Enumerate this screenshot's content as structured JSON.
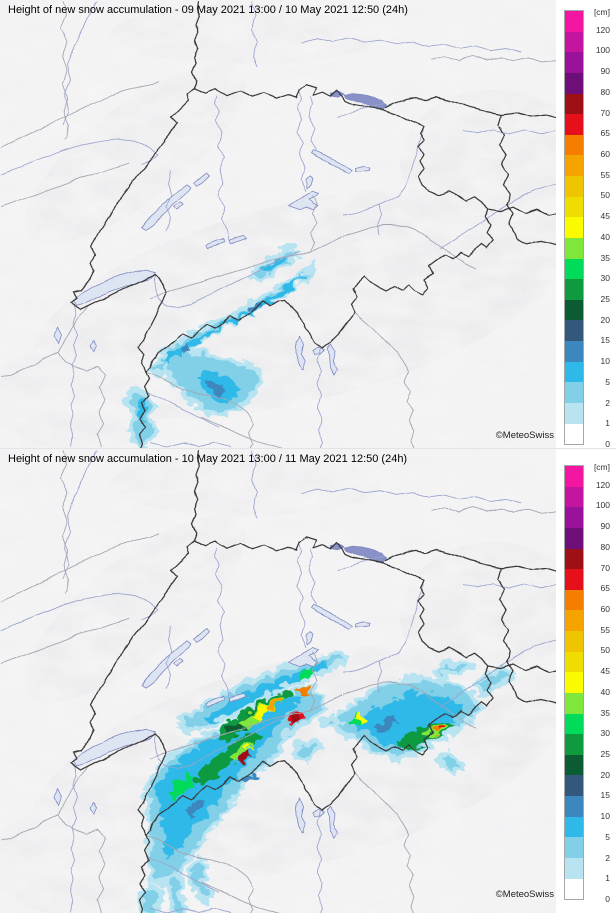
{
  "panels": [
    {
      "title": "Height of new snow accumulation - 09 May 2021 13:00 / 10 May 2021 12:50 (24h)",
      "attribution": "©MeteoSwiss"
    },
    {
      "title": "Height of new snow accumulation - 10 May 2021 13:00 / 11 May 2021 12:50 (24h)",
      "attribution": "©MeteoSwiss"
    }
  ],
  "legend": {
    "unit_label": "[cm]",
    "entries": [
      {
        "value": "120",
        "color": "#F316A0"
      },
      {
        "value": "100",
        "color": "#C414A0"
      },
      {
        "value": "90",
        "color": "#9A129A"
      },
      {
        "value": "80",
        "color": "#6E0E78"
      },
      {
        "value": "70",
        "color": "#9E1015"
      },
      {
        "value": "65",
        "color": "#E6101A"
      },
      {
        "value": "60",
        "color": "#F57E00"
      },
      {
        "value": "55",
        "color": "#F5A300"
      },
      {
        "value": "50",
        "color": "#EFC400"
      },
      {
        "value": "45",
        "color": "#EFDC00"
      },
      {
        "value": "40",
        "color": "#FBFB00"
      },
      {
        "value": "35",
        "color": "#7FE63C"
      },
      {
        "value": "30",
        "color": "#00DC5A"
      },
      {
        "value": "25",
        "color": "#109A40"
      },
      {
        "value": "20",
        "color": "#0B5B33"
      },
      {
        "value": "15",
        "color": "#33587C"
      },
      {
        "value": "10",
        "color": "#3C87BE"
      },
      {
        "value": "5",
        "color": "#2FB9E8"
      },
      {
        "value": "2",
        "color": "#82CFE8"
      },
      {
        "value": "1",
        "color": "#B8E4F2"
      },
      {
        "value": "0",
        "color": "#FFFFFF"
      }
    ]
  },
  "map_colors": {
    "country_border": "#3a3a3a",
    "region_border": "#a3a6b2",
    "river": "#9aa3cc",
    "lake_fill": "#dde4f2",
    "lake_large_fill": "#8992c8",
    "lake_outline": "#7f89c0",
    "land": "#f5f5f6",
    "relief_shade": "#c7c7cc"
  },
  "chart_data": {
    "type": "heatmap",
    "scale_unit": "cm",
    "scale_values": [
      0,
      1,
      2,
      5,
      10,
      15,
      20,
      25,
      30,
      35,
      40,
      45,
      50,
      55,
      60,
      65,
      70,
      80,
      90,
      100,
      120
    ],
    "maps": [
      {
        "period_start": "09 May 2021 13:00",
        "period_end": "10 May 2021 12:50",
        "duration": "24h",
        "summary": "Light new snow of about 1-15 cm confined to the main Alpine crest of Valais, the Monte Rosa region and small patches in the Bernese Oberland; the rest of the map is snow-free."
      },
      {
        "period_start": "10 May 2021 13:00",
        "period_end": "11 May 2021 12:50",
        "duration": "24h",
        "summary": "Widespread new snow across the Alps: broad 5-30 cm fields from Mont Blanc over Valais to central Switzerland, cores of 35-60 cm in the Bernese and Valais Alps with local maxima above 65-80 cm near the main crest, and a second maximum of 20-65 cm in Graubuenden/Bernina; lighter 1-10 cm amounts toward Ticino, Engadin and neighbouring Austria and Italy."
      }
    ]
  }
}
